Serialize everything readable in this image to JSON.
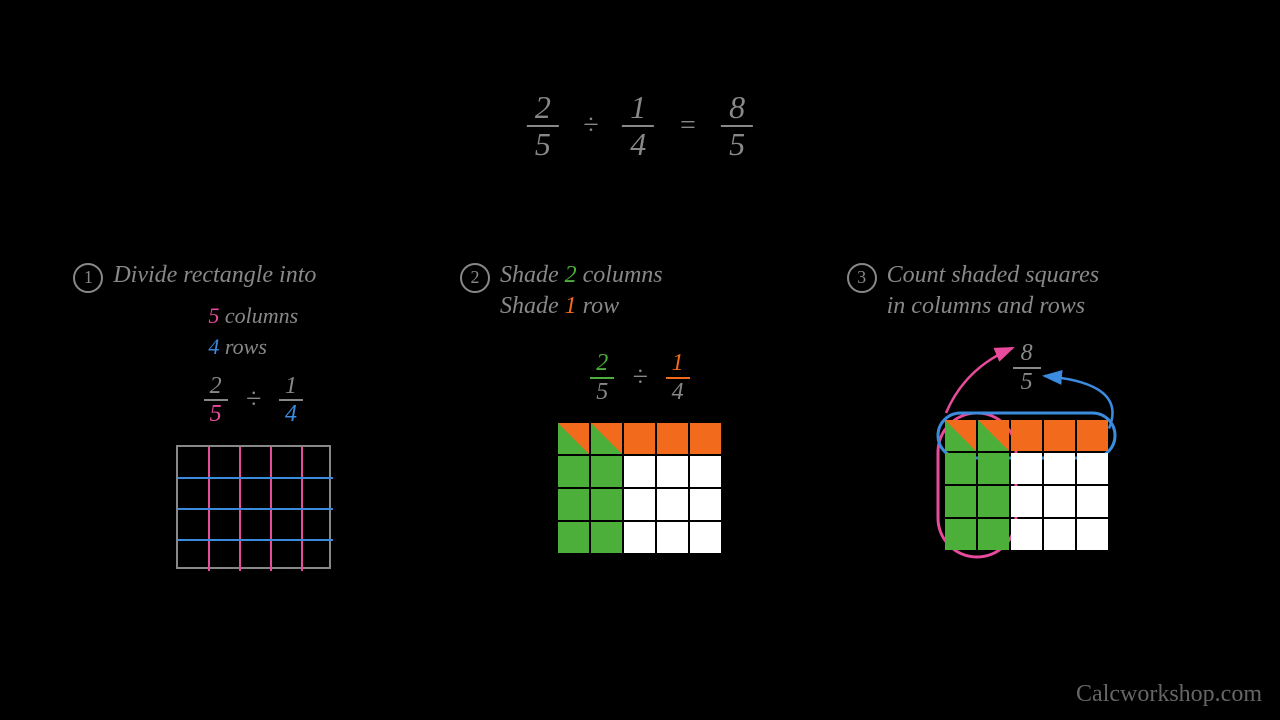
{
  "equation": {
    "f1": {
      "num": "2",
      "den": "5"
    },
    "op1": "÷",
    "f2": {
      "num": "1",
      "den": "4"
    },
    "op2": "=",
    "f3": {
      "num": "8",
      "den": "5"
    },
    "color": "#888888"
  },
  "colors": {
    "text": "#888888",
    "pink": "#e84b9c",
    "blue": "#3b8cde",
    "green": "#4caf3a",
    "orange": "#f26a1b",
    "white": "#ffffff",
    "black": "#000000",
    "gridBorder": "#888888"
  },
  "step1": {
    "num": "1",
    "title": "Divide rectangle into",
    "line1_val": "5",
    "line1_rest": " columns",
    "line2_val": "4",
    "line2_rest": " rows",
    "frac": {
      "f1n": "2",
      "f1d": "5",
      "op": "÷",
      "f2n": "1",
      "f2d": "4"
    },
    "grid": {
      "cols": 5,
      "rows": 4,
      "cellSize": 31,
      "outerBorderColor": "#888888",
      "vLineColor": "#e84b9c",
      "hLineColor": "#3b8cde",
      "lineWidth": 2
    }
  },
  "step2": {
    "num": "2",
    "titleA_pre": "Shade ",
    "titleA_val": "2",
    "titleA_post": " columns",
    "titleB_pre": "Shade ",
    "titleB_val": "1",
    "titleB_post": " row",
    "frac": {
      "f1n": "2",
      "f1d": "5",
      "op": "÷",
      "f2n": "1",
      "f2d": "4"
    },
    "grid": {
      "cols": 5,
      "rows": 4,
      "cellSize": 31,
      "gap": 2,
      "cells": [
        [
          "go",
          "go",
          "o",
          "o",
          "o"
        ],
        [
          "g",
          "g",
          "w",
          "w",
          "w"
        ],
        [
          "g",
          "g",
          "w",
          "w",
          "w"
        ],
        [
          "g",
          "g",
          "w",
          "w",
          "w"
        ]
      ],
      "colorMap": {
        "g": "#4caf3a",
        "o": "#f26a1b",
        "w": "#ffffff"
      }
    }
  },
  "step3": {
    "num": "3",
    "titleA": "Count shaded squares",
    "titleB": "in columns and rows",
    "resultFrac": {
      "num": "8",
      "den": "5"
    },
    "grid": {
      "cols": 5,
      "rows": 4,
      "cellSize": 31,
      "gap": 2,
      "cells": [
        [
          "go",
          "go",
          "o",
          "o",
          "o"
        ],
        [
          "g",
          "g",
          "w",
          "w",
          "w"
        ],
        [
          "g",
          "g",
          "w",
          "w",
          "w"
        ],
        [
          "g",
          "g",
          "w",
          "w",
          "w"
        ]
      ],
      "colorMap": {
        "g": "#4caf3a",
        "o": "#f26a1b",
        "w": "#ffffff"
      }
    },
    "ovalPink": {
      "stroke": "#e84b9c",
      "width": 3
    },
    "ovalBlue": {
      "stroke": "#3b8cde",
      "width": 3
    }
  },
  "watermark": "Calcworkshop.com"
}
